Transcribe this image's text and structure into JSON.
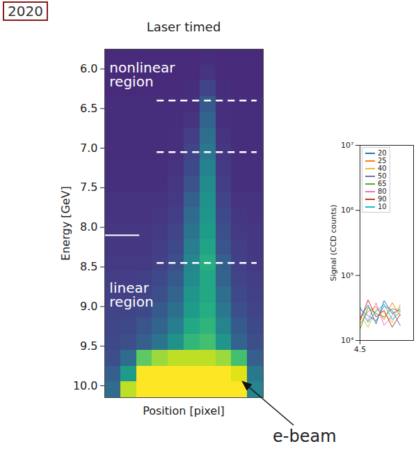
{
  "chart_data": [
    {
      "type": "heatmap",
      "title": "Laser timed",
      "x_label": "Position [pixel]",
      "y_label": "Energy [GeV]",
      "xlim": [
        0,
        10
      ],
      "ylim": [
        5.75,
        10.15
      ],
      "xticks": [],
      "yticks": [
        {
          "value": 6,
          "label": "6.0"
        },
        {
          "value": 6.5,
          "label": "6.5"
        },
        {
          "value": 7,
          "label": "7.0"
        },
        {
          "value": 7.5,
          "label": "7.5"
        },
        {
          "value": 8,
          "label": "8.0"
        },
        {
          "value": 8.5,
          "label": "8.5"
        },
        {
          "value": 9,
          "label": "9.0"
        },
        {
          "value": 9.5,
          "label": "9.5"
        },
        {
          "value": 10,
          "label": "10.0"
        }
      ],
      "tick_labels": "y",
      "x_bins": [
        0,
        1,
        2,
        3,
        4,
        5,
        6,
        7,
        8,
        9,
        10
      ],
      "y_bins": [
        5.75,
        5.95,
        6.15,
        6.35,
        6.55,
        6.75,
        6.95,
        7.15,
        7.35,
        7.55,
        7.75,
        7.95,
        8.15,
        8.35,
        8.55,
        8.75,
        8.95,
        9.15,
        9.35,
        9.55,
        9.75,
        9.95,
        10.15
      ],
      "cells": [
        [
          0.12,
          0.12,
          0.12,
          0.12,
          0.12,
          0.12,
          0.13,
          0.12,
          0.12,
          0.12
        ],
        [
          0.12,
          0.12,
          0.12,
          0.12,
          0.12,
          0.12,
          0.15,
          0.12,
          0.12,
          0.12
        ],
        [
          0.12,
          0.12,
          0.12,
          0.12,
          0.12,
          0.13,
          0.2,
          0.13,
          0.12,
          0.12
        ],
        [
          0.13,
          0.13,
          0.13,
          0.13,
          0.13,
          0.14,
          0.28,
          0.14,
          0.13,
          0.13
        ],
        [
          0.13,
          0.13,
          0.13,
          0.13,
          0.13,
          0.15,
          0.32,
          0.14,
          0.13,
          0.13
        ],
        [
          0.13,
          0.13,
          0.13,
          0.13,
          0.14,
          0.18,
          0.36,
          0.15,
          0.13,
          0.13
        ],
        [
          0.13,
          0.13,
          0.13,
          0.13,
          0.14,
          0.2,
          0.4,
          0.16,
          0.13,
          0.13
        ],
        [
          0.14,
          0.14,
          0.14,
          0.14,
          0.15,
          0.22,
          0.44,
          0.17,
          0.14,
          0.14
        ],
        [
          0.14,
          0.14,
          0.14,
          0.14,
          0.16,
          0.25,
          0.48,
          0.18,
          0.14,
          0.14
        ],
        [
          0.15,
          0.15,
          0.15,
          0.15,
          0.17,
          0.3,
          0.5,
          0.2,
          0.15,
          0.15
        ],
        [
          0.15,
          0.15,
          0.15,
          0.16,
          0.18,
          0.34,
          0.52,
          0.22,
          0.16,
          0.15
        ],
        [
          0.16,
          0.16,
          0.16,
          0.17,
          0.2,
          0.38,
          0.55,
          0.24,
          0.17,
          0.16
        ],
        [
          0.16,
          0.16,
          0.16,
          0.18,
          0.22,
          0.42,
          0.58,
          0.26,
          0.18,
          0.16
        ],
        [
          0.17,
          0.17,
          0.17,
          0.19,
          0.24,
          0.46,
          0.62,
          0.3,
          0.19,
          0.17
        ],
        [
          0.18,
          0.18,
          0.19,
          0.22,
          0.28,
          0.48,
          0.6,
          0.32,
          0.2,
          0.18
        ],
        [
          0.19,
          0.19,
          0.2,
          0.24,
          0.32,
          0.52,
          0.6,
          0.36,
          0.22,
          0.19
        ],
        [
          0.2,
          0.2,
          0.22,
          0.28,
          0.36,
          0.55,
          0.62,
          0.4,
          0.24,
          0.2
        ],
        [
          0.21,
          0.22,
          0.26,
          0.32,
          0.42,
          0.6,
          0.65,
          0.45,
          0.28,
          0.22
        ],
        [
          0.22,
          0.24,
          0.3,
          0.38,
          0.5,
          0.66,
          0.7,
          0.52,
          0.32,
          0.24
        ],
        [
          0.24,
          0.35,
          0.75,
          0.85,
          0.9,
          0.9,
          0.9,
          0.85,
          0.7,
          0.3
        ],
        [
          0.3,
          0.55,
          1,
          1,
          1,
          1,
          1,
          1,
          0.95,
          0.4
        ],
        [
          0.35,
          0.9,
          1,
          1,
          1,
          1,
          1,
          1,
          1,
          0.45
        ]
      ],
      "color_range": [
        0,
        1
      ],
      "color": "viridis",
      "lines": [
        {
          "y": 6.4,
          "x1": 3.3,
          "x2": 9.6,
          "line_style": "dashed"
        },
        {
          "y": 7.05,
          "x1": 3.3,
          "x2": 9.6,
          "line_style": "dashed"
        },
        {
          "y": 8.45,
          "x1": 3.3,
          "x2": 9.6,
          "line_style": "dashed"
        },
        {
          "y": 8.1,
          "x1": 0,
          "x2": 2.2,
          "line_style": "solid"
        }
      ],
      "annotations": [
        {
          "text": "nonlinear\nregion",
          "x": 0.3,
          "y": 5.92
        },
        {
          "text": "linear\nregion",
          "x": 0.3,
          "y": 8.7
        }
      ],
      "callout": {
        "text": "e-beam",
        "x": 8.7,
        "y": 9.95
      }
    },
    {
      "type": "line",
      "y_label": "Signal (CCD counts)",
      "log": "y",
      "xlim": [
        4.5,
        4.7
      ],
      "xticks": [
        4.5
      ],
      "ylim": [
        10000,
        10000000
      ],
      "yticks": [
        {
          "value": 10000,
          "label": "10⁴"
        },
        {
          "value": 100000,
          "label": "10⁵"
        },
        {
          "value": 1000000,
          "label": "10⁶"
        },
        {
          "value": 10000000,
          "label": "10⁷"
        }
      ],
      "legend": "upper left",
      "x": [
        4.5,
        4.53,
        4.56,
        4.59,
        4.62,
        4.65
      ],
      "series": [
        {
          "name": "20",
          "color": "#1f77b4",
          "values": [
            22000,
            35000,
            18000,
            41000,
            26000,
            30000
          ]
        },
        {
          "name": "25",
          "color": "#ff7f0e",
          "values": [
            18000,
            28000,
            33000,
            21000,
            38000,
            24000
          ]
        },
        {
          "name": "40",
          "color": "#e5c12a",
          "values": [
            25000,
            16000,
            30000,
            27000,
            19000,
            36000
          ]
        },
        {
          "name": "50",
          "color": "#6b6fb0",
          "values": [
            30000,
            24000,
            20000,
            34000,
            29000,
            17000
          ]
        },
        {
          "name": "65",
          "color": "#5aa02c",
          "values": [
            15000,
            32000,
            26000,
            23000,
            31000,
            28000
          ]
        },
        {
          "name": "80",
          "color": "#e377c2",
          "values": [
            27000,
            20000,
            38000,
            17000,
            24000,
            33000
          ]
        },
        {
          "name": "90",
          "color": "#c0392b",
          "values": [
            20000,
            42000,
            23000,
            29000,
            16000,
            25000
          ]
        },
        {
          "name": "10",
          "color": "#17becf",
          "values": [
            33000,
            19000,
            28000,
            36000,
            21000,
            27000
          ]
        }
      ]
    }
  ],
  "badge": "2020"
}
